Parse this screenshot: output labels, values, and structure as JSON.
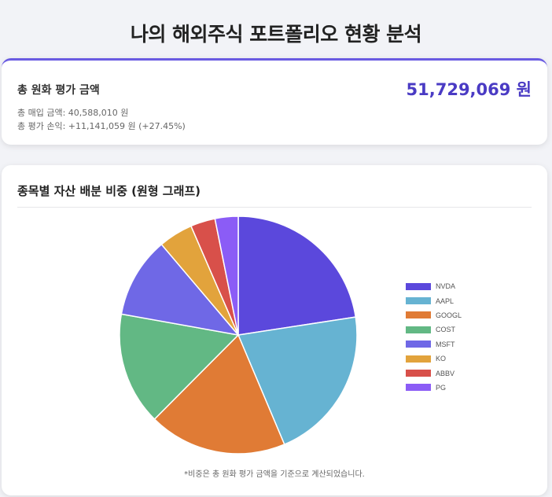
{
  "page": {
    "title": "나의 해외주식 포트폴리오 현황 분석"
  },
  "summary": {
    "label": "총 원화 평가 금액",
    "total_value": "51,729,069 원",
    "purchase_line": "총 매입 금액: 40,588,010 원",
    "profit_line": "총 평가 손익: +11,141,059 원 (+27.45%)"
  },
  "colors": {
    "accent": "#6a5be2",
    "total": "#4a3bc4"
  },
  "chart_card": {
    "heading": "종목별 자산 배분 비중 (원형 그래프)",
    "footnote": "*비중은 총 원화 평가 금액을 기준으로 계산되었습니다."
  },
  "chart_data": {
    "type": "pie",
    "categories": [
      "NVDA",
      "AAPL",
      "GOOGL",
      "COST",
      "MSFT",
      "KO",
      "ABBV",
      "PG"
    ],
    "values": [
      22.2,
      20.7,
      18.5,
      15.1,
      10.8,
      4.6,
      3.3,
      3.1
    ],
    "colors": [
      "#5b48dc",
      "#66b3d2",
      "#e07b35",
      "#62b884",
      "#6f68e6",
      "#e2a33c",
      "#d8504a",
      "#8b5cf6"
    ],
    "legend_position": "right"
  }
}
